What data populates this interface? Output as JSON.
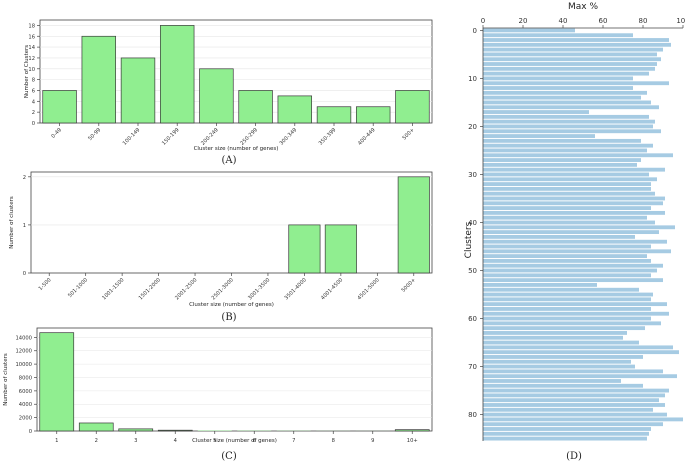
{
  "panel_labels": {
    "a": "(A)",
    "b": "(B)",
    "c": "(C)",
    "d": "(D)"
  },
  "colors": {
    "bar_green": "#90ee90",
    "bar_green_edge": "#3a3a3a",
    "bar_blue": "#a6cbe3",
    "axis": "#444444"
  },
  "chart_data": [
    {
      "id": "A",
      "type": "bar",
      "categories": [
        "0-49",
        "50-99",
        "100-149",
        "150-199",
        "200-249",
        "250-299",
        "300-349",
        "350-399",
        "400-449",
        "500+"
      ],
      "values": [
        6,
        16,
        12,
        18,
        10,
        6,
        5,
        3,
        3,
        6
      ],
      "xlabel": "Cluster size (number of genes)",
      "ylabel": "Number of Clusters",
      "ylim": [
        0,
        19
      ],
      "yticks": [
        0,
        2,
        4,
        6,
        8,
        10,
        12,
        14,
        16,
        18
      ],
      "grid": true
    },
    {
      "id": "B",
      "type": "bar",
      "categories": [
        "1-500",
        "501-1000",
        "1001-1500",
        "1501-2000",
        "2001-2500",
        "2501-3000",
        "3001-3500",
        "3501-4000",
        "4001-4500",
        "4501-5000",
        "5000+"
      ],
      "values": [
        0,
        0,
        0,
        0,
        0,
        0,
        0,
        1,
        1,
        0,
        2
      ],
      "xlabel": "Cluster size (number of genes)",
      "ylabel": "Number of clusters",
      "ylim": [
        0,
        2.1
      ],
      "yticks": [
        0,
        1,
        2
      ],
      "grid": true
    },
    {
      "id": "C",
      "type": "bar",
      "categories": [
        "1",
        "2",
        "3",
        "4",
        "5",
        "6",
        "7",
        "8",
        "9",
        "10+"
      ],
      "values": [
        14700,
        1200,
        320,
        120,
        60,
        40,
        30,
        15,
        10,
        200
      ],
      "xlabel": "Cluster size (number of genes)",
      "ylabel": "Number of clusters",
      "ylim": [
        0,
        15400
      ],
      "yticks": [
        0,
        2000,
        4000,
        6000,
        8000,
        10000,
        12000,
        14000
      ],
      "grid": true
    },
    {
      "id": "D",
      "type": "bar",
      "orientation": "horizontal",
      "xlabel": "Max %",
      "ylabel": "Clusters",
      "xlim": [
        0,
        100
      ],
      "xticks": [
        0,
        20,
        40,
        60,
        80,
        100
      ],
      "yticks": [
        0,
        10,
        20,
        30,
        40,
        50,
        60,
        70,
        80
      ],
      "ylim": [
        -0.5,
        85.5
      ],
      "values": [
        46,
        75,
        93,
        94,
        90,
        87,
        89,
        87,
        86,
        83,
        75,
        93,
        75,
        82,
        79,
        84,
        88,
        53,
        83,
        86,
        85,
        89,
        56,
        79,
        85,
        82,
        95,
        79,
        77,
        91,
        83,
        87,
        84,
        84,
        86,
        91,
        90,
        84,
        91,
        82,
        86,
        96,
        88,
        76,
        92,
        84,
        94,
        82,
        84,
        90,
        87,
        84,
        90,
        57,
        78,
        85,
        84,
        92,
        84,
        93,
        84,
        89,
        81,
        72,
        70,
        78,
        95,
        98,
        80,
        74,
        76,
        90,
        97,
        69,
        80,
        93,
        91,
        88,
        91,
        85,
        92,
        100,
        90,
        84,
        83,
        82
      ]
    }
  ]
}
